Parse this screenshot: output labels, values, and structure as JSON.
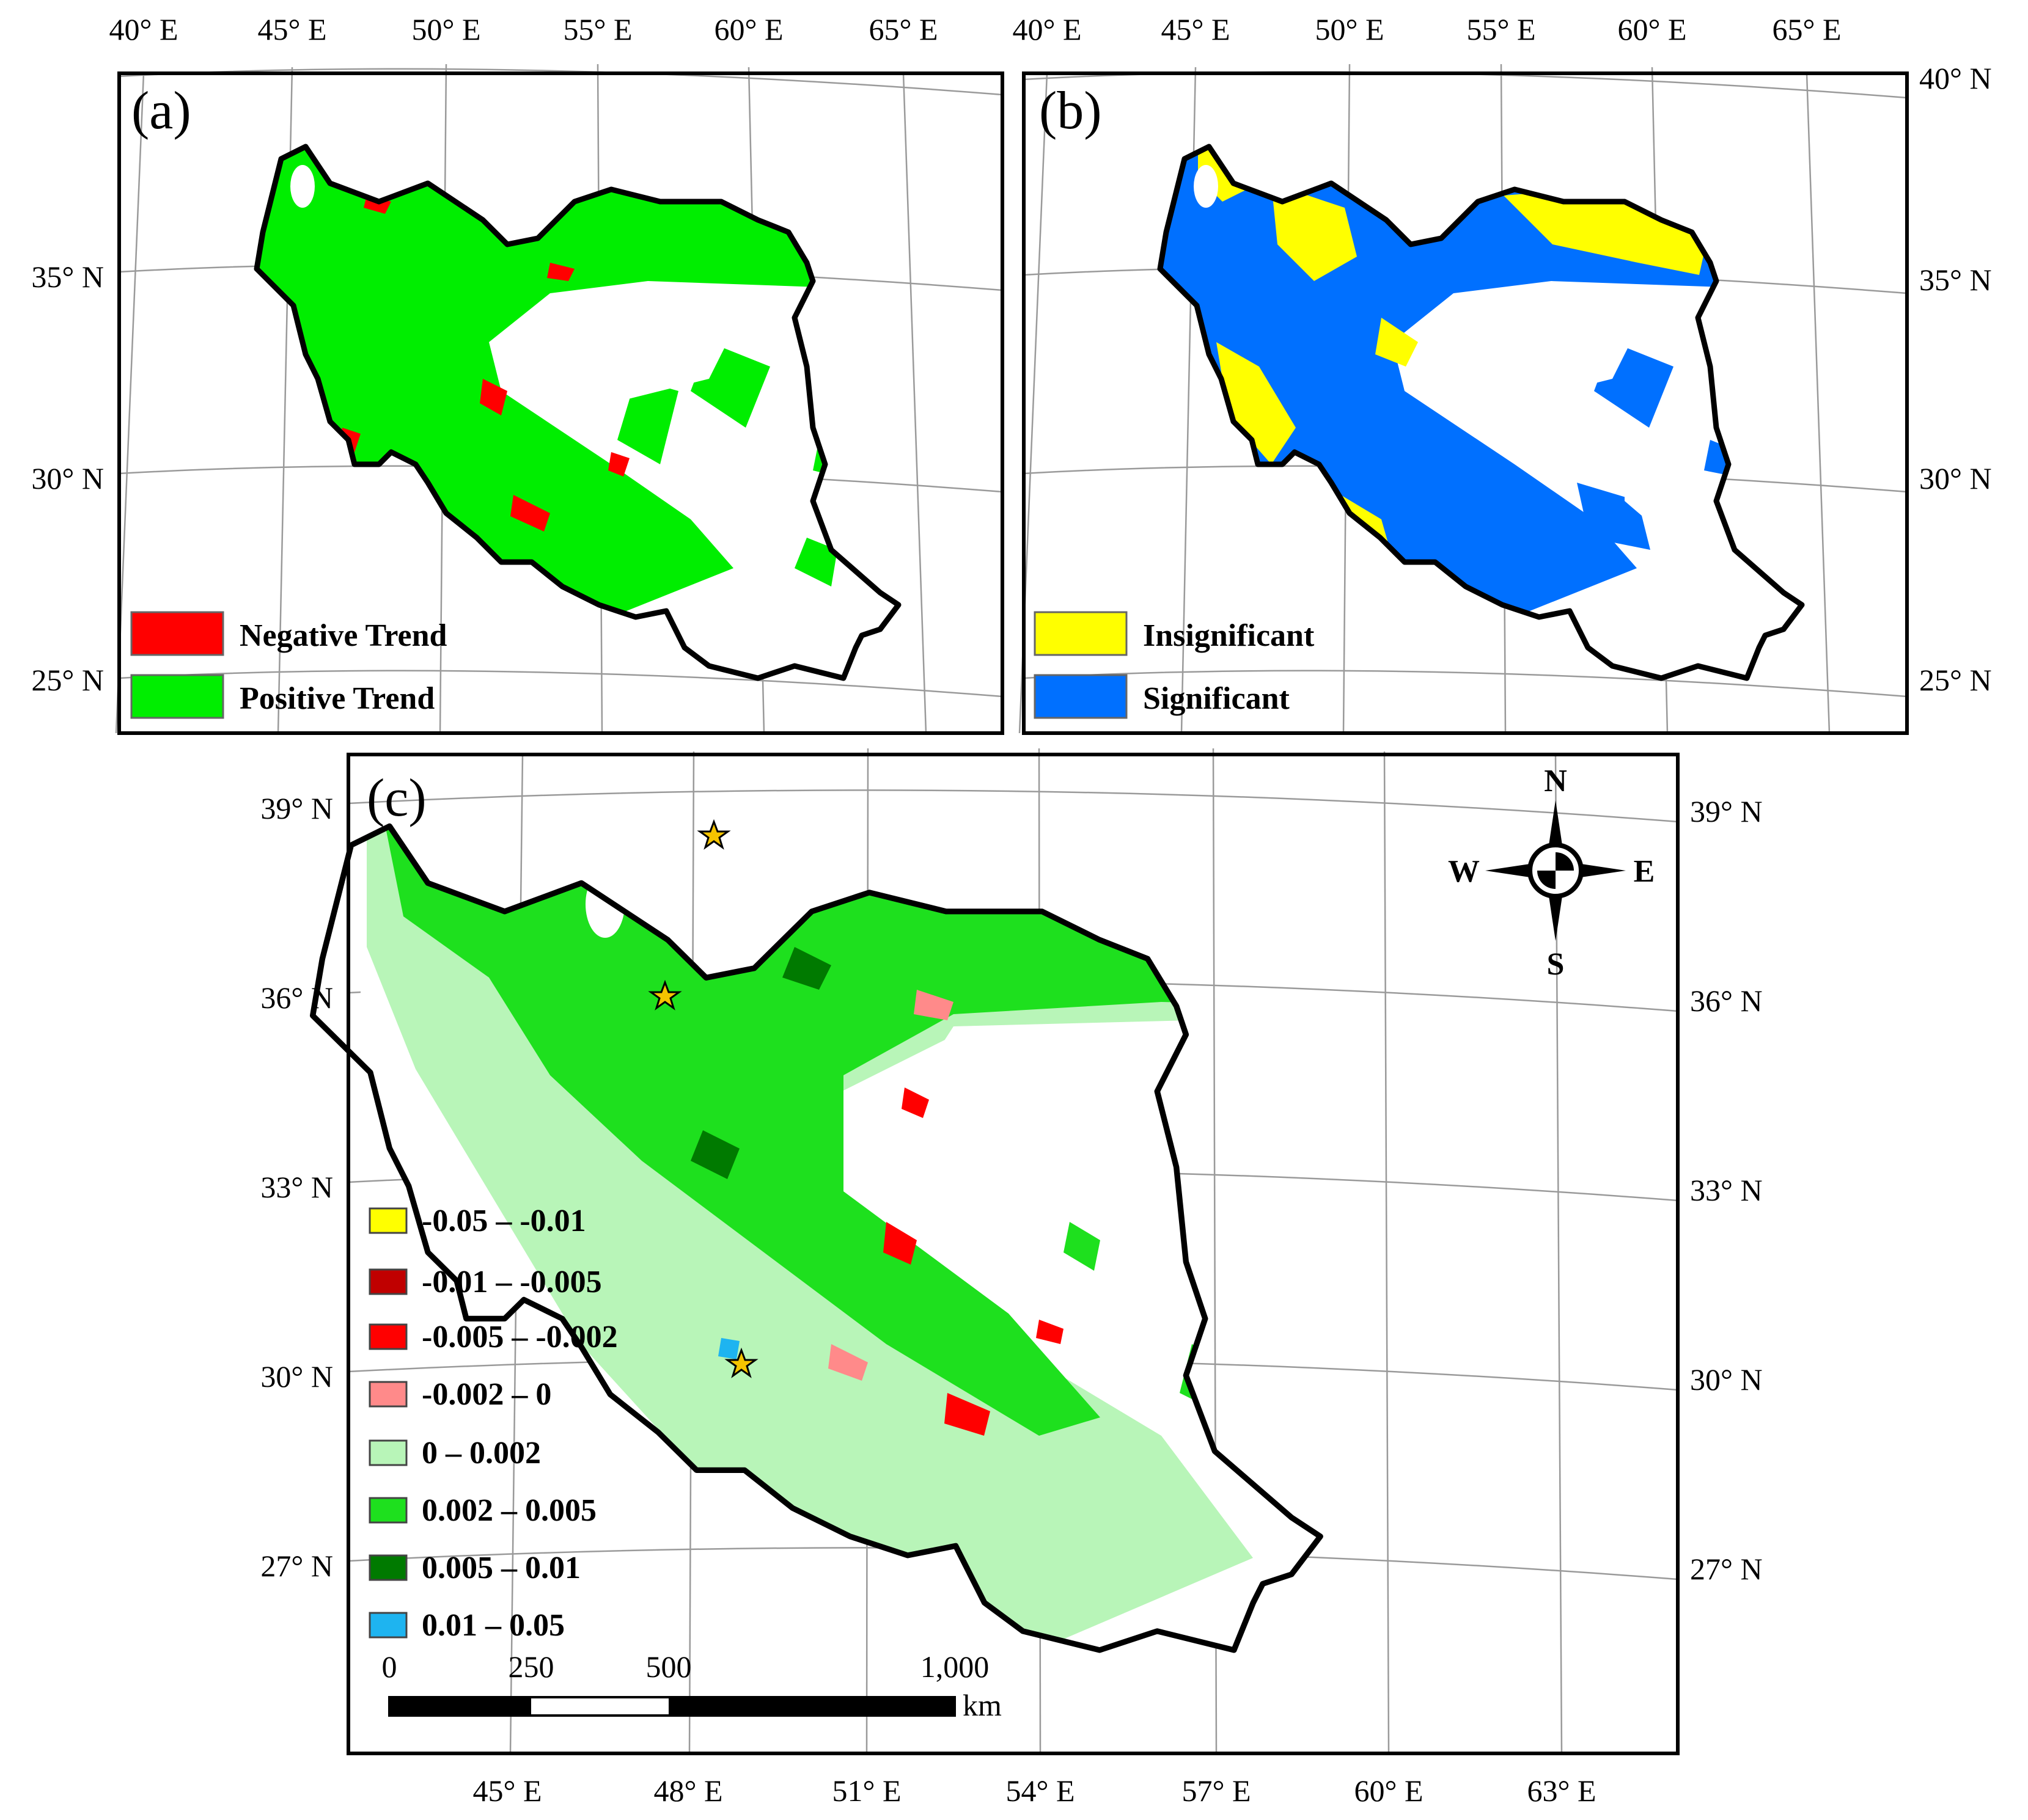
{
  "panels": {
    "a": {
      "letter": "(a)",
      "lon_labels": [
        "40° E",
        "45° E",
        "50° E",
        "55° E",
        "60° E",
        "65° E"
      ],
      "lat_labels": [
        "35° N",
        "30° N",
        "25° N"
      ],
      "legend": [
        {
          "label": "Negative Trend",
          "color": "#ff0000"
        },
        {
          "label": "Positive Trend",
          "color": "#00ee00"
        }
      ]
    },
    "b": {
      "letter": "(b)",
      "lon_labels": [
        "40° E",
        "45° E",
        "50° E",
        "55° E",
        "60° E",
        "65° E"
      ],
      "lat_labels": [
        "40° N",
        "35° N",
        "30° N",
        "25° N"
      ],
      "legend": [
        {
          "label": "Insignificant",
          "color": "#ffff00"
        },
        {
          "label": "Significant",
          "color": "#0070ff"
        }
      ]
    },
    "c": {
      "letter": "(c)",
      "lon_labels": [
        "45° E",
        "48° E",
        "51° E",
        "54° E",
        "57° E",
        "60° E",
        "63° E"
      ],
      "lat_labels": [
        "39° N",
        "36° N",
        "33° N",
        "30° N",
        "27° N"
      ],
      "legend": [
        {
          "label": "-0.05 – -0.01",
          "color": "#ffff00"
        },
        {
          "label": "-0.01 – -0.005",
          "color": "#c00000"
        },
        {
          "label": "-0.005 – -0.002",
          "color": "#ff0000"
        },
        {
          "label": "-0.002 – 0",
          "color": "#ff8a8a"
        },
        {
          "label": "0 – 0.002",
          "color": "#b8f5b8"
        },
        {
          "label": "0.002 – 0.005",
          "color": "#1ee01e"
        },
        {
          "label": "0.005 – 0.01",
          "color": "#007a00"
        },
        {
          "label": "0.01 – 0.05",
          "color": "#1eb4f0"
        }
      ],
      "north_arrow": {
        "n": "N",
        "s": "S",
        "e": "E",
        "w": "W"
      },
      "scale_bar": {
        "ticks": [
          "0",
          "250",
          "500",
          "1,000"
        ],
        "unit": "km"
      }
    }
  },
  "colors": {
    "positive": "#00ee00",
    "negative": "#ff0000",
    "significant": "#0070ff",
    "insignificant": "#ffff00",
    "border": "#000000",
    "graticule": "#9a9a9a"
  }
}
